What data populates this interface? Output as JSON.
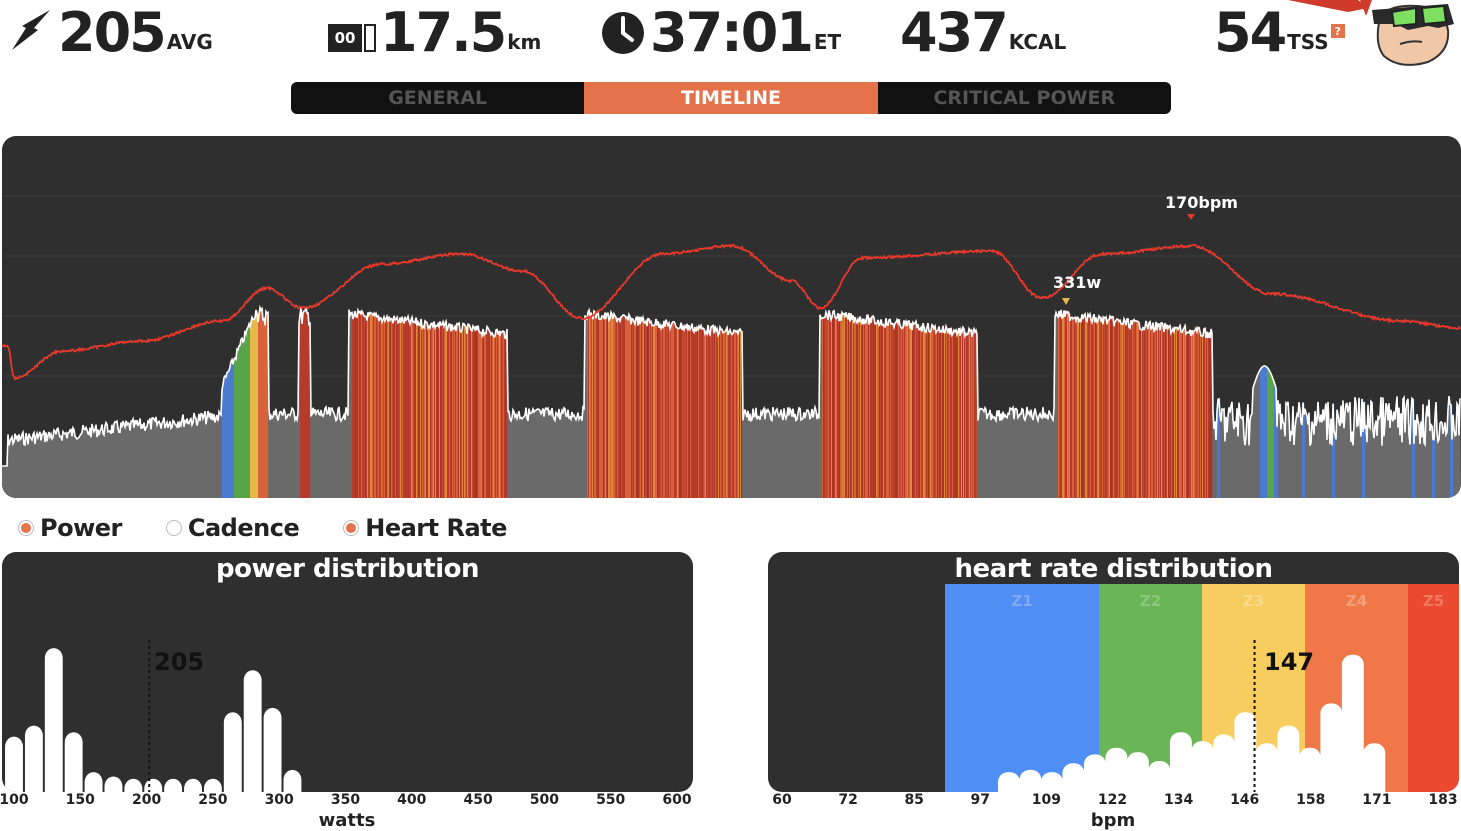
{
  "stats": {
    "power": {
      "value": "205",
      "unit": "AVG",
      "icon": "lightning-icon"
    },
    "distance": {
      "value": "17.5",
      "unit": "km",
      "odometer": "00",
      "icon": "odometer-icon"
    },
    "time": {
      "value": "37:01",
      "unit": "ET",
      "icon": "clock-icon"
    },
    "calories": {
      "value": "437",
      "unit": "KCAL"
    },
    "tss": {
      "value": "54",
      "unit": "TSS",
      "help": "?"
    }
  },
  "tabs": [
    {
      "label": "GENERAL",
      "active": false
    },
    {
      "label": "TIMELINE",
      "active": true
    },
    {
      "label": "CRITICAL POWER",
      "active": false
    }
  ],
  "timeline": {
    "annotations": {
      "hr_peak": "170bpm",
      "power_peak": "331w"
    },
    "colors": {
      "heart_rate": "#e8382c",
      "power_line": "#ffffff",
      "base": "#6a6a6a",
      "z1": "#4b7bd0",
      "z2": "#57a548",
      "z3": "#e8b84a",
      "z4": "#d8623a",
      "z5": "#b83a2a"
    }
  },
  "legend": [
    {
      "label": "Power",
      "on": true
    },
    {
      "label": "Cadence",
      "on": false
    },
    {
      "label": "Heart Rate",
      "on": true
    }
  ],
  "power_dist": {
    "title": "power distribution",
    "avg": "205",
    "ticks": [
      "100",
      "150",
      "200",
      "250",
      "300",
      "350",
      "400",
      "450",
      "500",
      "550",
      "600"
    ],
    "xlabel": "watts"
  },
  "hr_dist": {
    "title": "heart rate distribution",
    "avg": "147",
    "ticks": [
      "60",
      "72",
      "85",
      "97",
      "109",
      "122",
      "134",
      "146",
      "158",
      "171",
      "183"
    ],
    "xlabel": "bpm",
    "zones": [
      "Z1",
      "Z2",
      "Z3",
      "Z4",
      "Z5"
    ],
    "zone_colors": [
      "#4f8ef5",
      "#6ab657",
      "#f6cd5e",
      "#f07848",
      "#ea4a30"
    ]
  },
  "chart_data": [
    {
      "type": "area",
      "title": "",
      "series": [
        {
          "name": "Power",
          "values": [
            110,
            120,
            130,
            145,
            160,
            195,
            120,
            210,
            130,
            300,
            300,
            300,
            120,
            300,
            300,
            300,
            120,
            300,
            300,
            300,
            120,
            300,
            300,
            300,
            110,
            130,
            160,
            140,
            130,
            100
          ]
        },
        {
          "name": "Heart Rate",
          "values": [
            110,
            118,
            125,
            130,
            140,
            142,
            160,
            165,
            166,
            150,
            140,
            162,
            166,
            164,
            150,
            138,
            163,
            167,
            166,
            152,
            158,
            168,
            170,
            165,
            150,
            146,
            144,
            142,
            140,
            138
          ]
        }
      ],
      "annotations": [
        "170bpm",
        "331w"
      ]
    },
    {
      "type": "bar",
      "title": "power distribution",
      "xlabel": "watts",
      "x": [
        100,
        115,
        130,
        145,
        160,
        175,
        190,
        205,
        220,
        235,
        250,
        265,
        280,
        295,
        310,
        325
      ],
      "values": [
        25,
        30,
        65,
        27,
        9,
        7,
        6,
        6,
        6,
        6,
        6,
        36,
        55,
        38,
        10,
        0
      ],
      "avg": 205
    },
    {
      "type": "bar",
      "title": "heart rate distribution",
      "xlabel": "bpm",
      "x": [
        100,
        104,
        108,
        112,
        116,
        120,
        124,
        128,
        132,
        136,
        140,
        144,
        148,
        152,
        156,
        160,
        164,
        168,
        172,
        176
      ],
      "values": [
        9,
        10,
        9,
        13,
        17,
        20,
        18,
        14,
        27,
        23,
        26,
        36,
        22,
        30,
        20,
        40,
        62,
        22,
        0,
        0
      ],
      "avg": 147
    }
  ]
}
